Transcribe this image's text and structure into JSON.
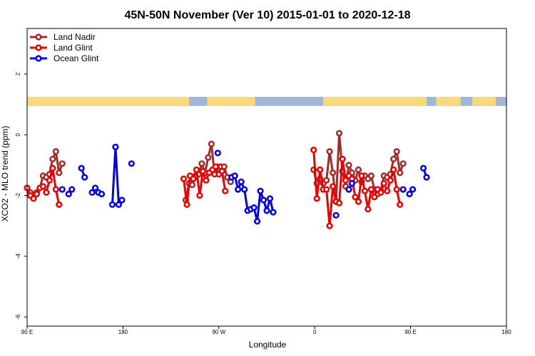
{
  "chart_data": {
    "type": "line",
    "title": "45N-50N November (Ver 10)   2015-01-01 to 2020-12-18",
    "xlabel": "Longitude",
    "ylabel": "XCO2 - MLO trend (ppm)",
    "xlim": [
      90,
      450
    ],
    "ylim": [
      -6.3,
      3.5
    ],
    "x_ticks": [
      {
        "value": 90,
        "label": "90 E"
      },
      {
        "value": 180,
        "label": "180"
      },
      {
        "value": 270,
        "label": "90 W"
      },
      {
        "value": 360,
        "label": "0"
      },
      {
        "value": 450,
        "label": "90 E"
      },
      {
        "value": 540,
        "label": "180"
      }
    ],
    "y_ticks": [
      {
        "value": 2,
        "label": "2"
      },
      {
        "value": 0,
        "label": "0"
      },
      {
        "value": -2,
        "label": "-2"
      },
      {
        "value": -4,
        "label": "-4"
      },
      {
        "value": -6,
        "label": "-6"
      }
    ],
    "x_display_range": [
      90,
      540
    ],
    "land_band": {
      "y_range": [
        0.95,
        1.25
      ],
      "land_color": "#f9d97a",
      "ocean_color": "#9fb8d9",
      "land_segments": [
        [
          90,
          242
        ],
        [
          259,
          304
        ],
        [
          368,
          465
        ],
        [
          474,
          497
        ],
        [
          508,
          530
        ]
      ]
    },
    "legend": {
      "position": "top-left",
      "entries": [
        "Land Nadir",
        "Land Glint",
        "Ocean Glint"
      ]
    },
    "series": [
      {
        "name": "Land Nadir",
        "color": "#a52a2a",
        "segments": [
          [
            [
              93,
              -1.9
            ],
            [
              96,
              -2.0
            ],
            [
              99,
              -1.9
            ],
            [
              102,
              -1.75
            ],
            [
              105,
              -1.35
            ],
            [
              108,
              -1.4
            ],
            [
              111,
              -1.3
            ],
            [
              114,
              -0.8
            ],
            [
              117,
              -0.55
            ],
            [
              120,
              -1.25
            ],
            [
              123,
              -0.95
            ]
          ],
          [
            [
              239,
              -2.15
            ],
            [
              242,
              -1.6
            ],
            [
              245,
              -1.65
            ],
            [
              248,
              -1.35
            ],
            [
              251,
              -1.3
            ],
            [
              254,
              -0.95
            ],
            [
              257,
              -1.25
            ],
            [
              260,
              -0.75
            ],
            [
              263,
              -0.3
            ],
            [
              266,
              -1.3
            ],
            [
              269,
              -1.05
            ],
            [
              272,
              -1.05
            ],
            [
              275,
              -1.05
            ],
            [
              278,
              -1.4
            ],
            [
              281,
              -1.55
            ]
          ],
          [
            [
              359,
              -1.15
            ],
            [
              362,
              -1.6
            ],
            [
              365,
              -1.45
            ],
            [
              368,
              -1.6
            ],
            [
              371,
              -1.5
            ],
            [
              374,
              -0.55
            ],
            [
              377,
              -1.25
            ],
            [
              380,
              -2.2
            ],
            [
              383,
              0.05
            ],
            [
              386,
              -1.2
            ],
            [
              389,
              -1.7
            ],
            [
              392,
              -1.0
            ],
            [
              395,
              -1.25
            ],
            [
              398,
              -1.5
            ],
            [
              401,
              -1.15
            ],
            [
              404,
              -1.55
            ],
            [
              407,
              -1.35
            ],
            [
              410,
              -1.45
            ],
            [
              413,
              -1.35
            ],
            [
              416,
              -1.8
            ],
            [
              419,
              -1.95
            ],
            [
              422,
              -1.85
            ],
            [
              425,
              -1.35
            ],
            [
              428,
              -1.4
            ],
            [
              431,
              -1.3
            ],
            [
              434,
              -0.8
            ],
            [
              437,
              -0.55
            ],
            [
              440,
              -1.25
            ],
            [
              443,
              -0.95
            ]
          ]
        ]
      },
      {
        "name": "Land Glint",
        "color": "#ee0000",
        "segments": [
          [
            [
              90,
              -1.75
            ],
            [
              93,
              -2.0
            ],
            [
              96,
              -2.1
            ],
            [
              99,
              -1.95
            ],
            [
              102,
              -1.75
            ],
            [
              105,
              -1.7
            ],
            [
              108,
              -1.9
            ],
            [
              111,
              -1.5
            ],
            [
              114,
              -1.1
            ],
            [
              117,
              -1.8
            ],
            [
              120,
              -2.3
            ]
          ],
          [
            [
              237,
              -1.45
            ],
            [
              240,
              -2.3
            ],
            [
              243,
              -1.35
            ],
            [
              246,
              -1.45
            ],
            [
              249,
              -1.15
            ],
            [
              252,
              -2.0
            ],
            [
              255,
              -1.2
            ],
            [
              258,
              -1.5
            ],
            [
              261,
              -1.25
            ],
            [
              264,
              -1.15
            ],
            [
              267,
              -1.05
            ],
            [
              270,
              -1.3
            ],
            [
              273,
              -1.2
            ],
            [
              276,
              -1.85
            ]
          ],
          [
            [
              359,
              -0.5
            ],
            [
              362,
              -2.1
            ],
            [
              365,
              -1.15
            ],
            [
              368,
              -1.8
            ],
            [
              371,
              -1.8
            ],
            [
              374,
              -3.0
            ],
            [
              377,
              -1.7
            ],
            [
              380,
              -2.2
            ],
            [
              383,
              -2.25
            ],
            [
              386,
              -0.8
            ],
            [
              389,
              -1.5
            ],
            [
              392,
              -1.35
            ],
            [
              395,
              -1.45
            ],
            [
              398,
              -2.05
            ],
            [
              401,
              -2.2
            ],
            [
              404,
              -1.35
            ],
            [
              407,
              -1.85
            ],
            [
              410,
              -2.45
            ],
            [
              413,
              -1.8
            ],
            [
              416,
              -2.05
            ],
            [
              419,
              -1.8
            ],
            [
              422,
              -1.9
            ],
            [
              425,
              -1.6
            ],
            [
              428,
              -1.85
            ],
            [
              431,
              -1.5
            ],
            [
              434,
              -1.15
            ],
            [
              437,
              -1.8
            ],
            [
              440,
              -2.3
            ]
          ]
        ]
      },
      {
        "name": "Ocean Glint",
        "color": "#0000ee",
        "segments": [
          [
            [
              123,
              -1.8
            ]
          ],
          [
            [
              129,
              -1.95
            ],
            [
              132,
              -1.8
            ]
          ],
          [
            [
              141,
              -1.1
            ],
            [
              144,
              -1.4
            ]
          ],
          [
            [
              151,
              -1.9
            ],
            [
              154,
              -1.75
            ],
            [
              157,
              -1.9
            ],
            [
              160,
              -1.95
            ]
          ],
          [
            [
              170,
              -2.3
            ],
            [
              173,
              -0.4
            ],
            [
              176,
              -2.3
            ],
            [
              179,
              -2.15
            ]
          ],
          [
            [
              188,
              -0.95
            ]
          ],
          [
            [
              269,
              -0.6
            ]
          ],
          [
            [
              282,
              -1.4
            ],
            [
              285,
              -1.35
            ],
            [
              288,
              -1.8
            ],
            [
              291,
              -1.55
            ],
            [
              294,
              -1.8
            ],
            [
              297,
              -2.5
            ],
            [
              300,
              -2.45
            ],
            [
              303,
              -2.4
            ],
            [
              306,
              -2.85
            ],
            [
              309,
              -1.85
            ],
            [
              312,
              -2.15
            ],
            [
              315,
              -2.5
            ],
            [
              318,
              -2.1
            ],
            [
              321,
              -2.55
            ]
          ],
          [
            [
              380,
              -2.65
            ]
          ],
          [
            [
              392,
              -1.8
            ],
            [
              395,
              -1.6
            ]
          ],
          [
            [
              443,
              -1.8
            ]
          ],
          [
            [
              449,
              -1.95
            ],
            [
              452,
              -1.8
            ]
          ],
          [
            [
              462,
              -1.1
            ],
            [
              465,
              -1.4
            ]
          ]
        ]
      }
    ]
  }
}
